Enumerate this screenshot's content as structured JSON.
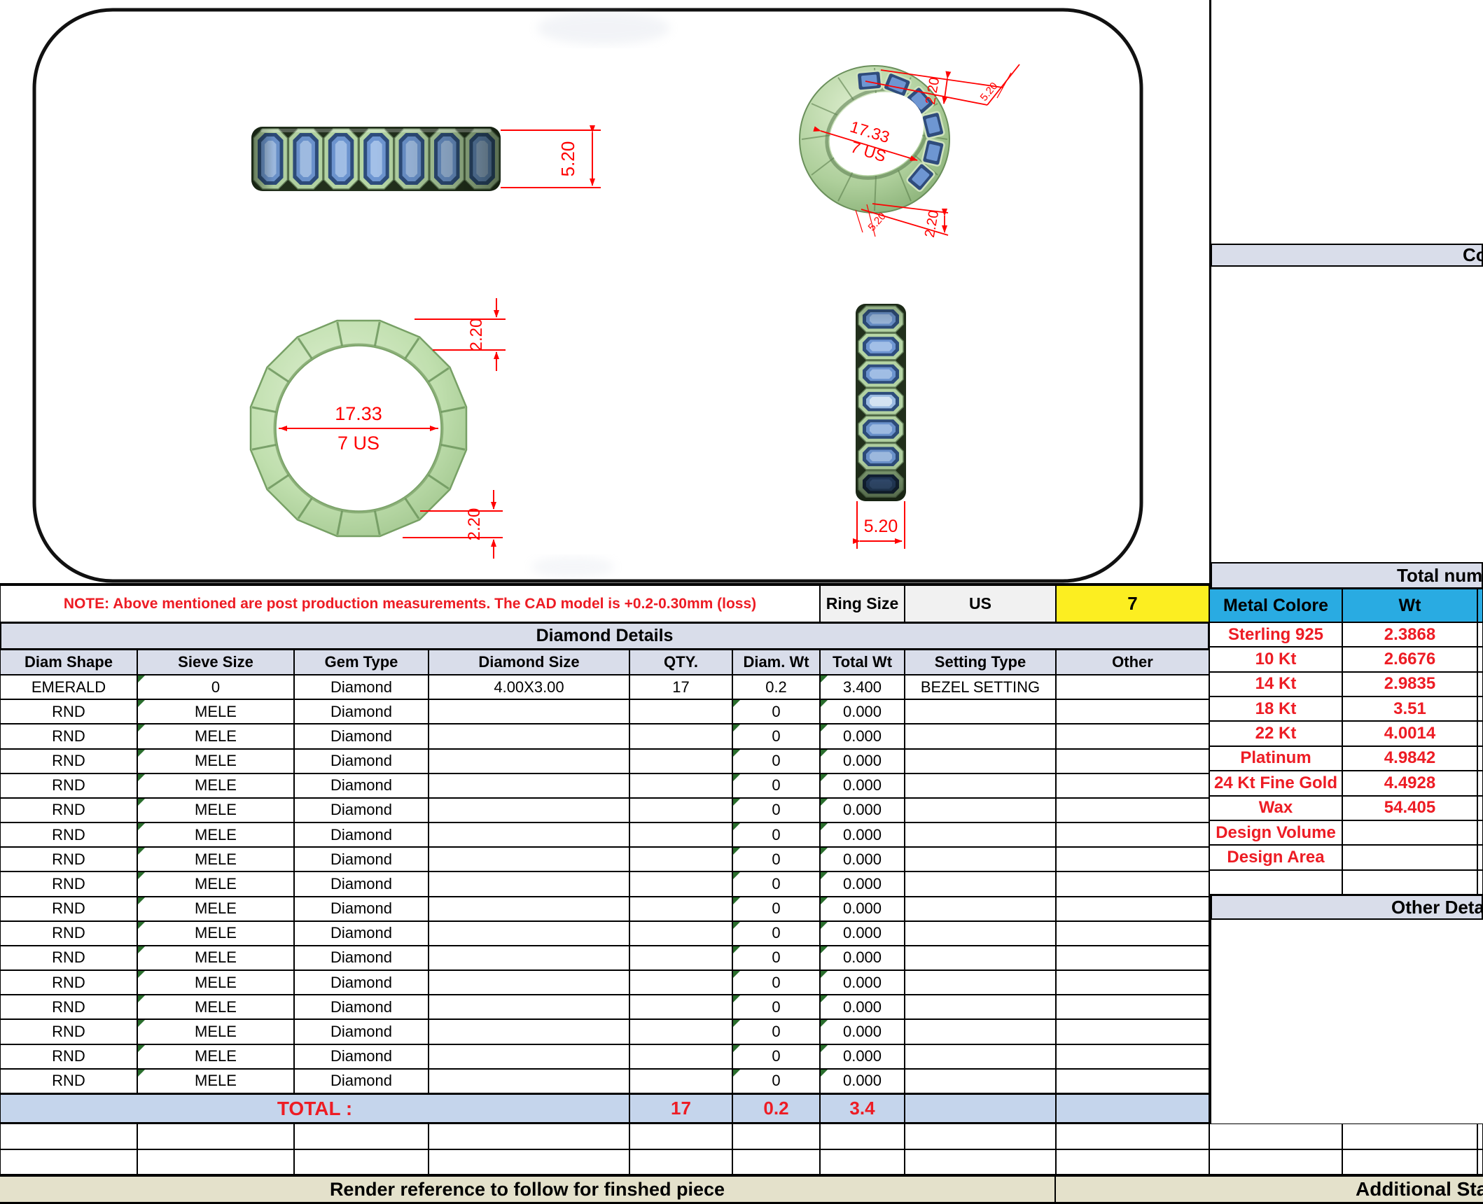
{
  "drawing": {
    "side_view": {
      "height": "5.20"
    },
    "perspective_view": {
      "diameter": "17.33",
      "ring_size": "7 US",
      "thickness_top": "2.20",
      "width_top": "5.20",
      "thickness_bottom": "2.20",
      "width_bottom": "5.20"
    },
    "front_view": {
      "diameter": "17.33",
      "ring_size": "7 US",
      "thickness_top": "2.20",
      "thickness_bottom": "2.20"
    },
    "profile_view": {
      "width": "5.20"
    }
  },
  "note": {
    "text": "NOTE: Above mentioned are post production measurements. The CAD model is +0.2-0.30mm (loss)"
  },
  "ring_size": {
    "label": "Ring Size",
    "standard": "US",
    "value": "7"
  },
  "diamond_table": {
    "title": "Diamond Details",
    "headers": [
      "Diam Shape",
      "Sieve Size",
      "Gem Type",
      "Diamond Size",
      "QTY.",
      "Diam. Wt",
      "Total Wt",
      "Setting Type",
      "Other"
    ],
    "rows": [
      {
        "shape": "EMERALD",
        "sieve": "0",
        "gem": "Diamond",
        "size": "4.00X3.00",
        "qty": "17",
        "diam_wt": "0.2",
        "total_wt": "3.400",
        "setting": "BEZEL SETTING",
        "other": ""
      },
      {
        "shape": "RND",
        "sieve": "MELE",
        "gem": "Diamond",
        "size": "",
        "qty": "",
        "diam_wt": "0",
        "total_wt": "0.000",
        "setting": "",
        "other": ""
      },
      {
        "shape": "RND",
        "sieve": "MELE",
        "gem": "Diamond",
        "size": "",
        "qty": "",
        "diam_wt": "0",
        "total_wt": "0.000",
        "setting": "",
        "other": ""
      },
      {
        "shape": "RND",
        "sieve": "MELE",
        "gem": "Diamond",
        "size": "",
        "qty": "",
        "diam_wt": "0",
        "total_wt": "0.000",
        "setting": "",
        "other": ""
      },
      {
        "shape": "RND",
        "sieve": "MELE",
        "gem": "Diamond",
        "size": "",
        "qty": "",
        "diam_wt": "0",
        "total_wt": "0.000",
        "setting": "",
        "other": ""
      },
      {
        "shape": "RND",
        "sieve": "MELE",
        "gem": "Diamond",
        "size": "",
        "qty": "",
        "diam_wt": "0",
        "total_wt": "0.000",
        "setting": "",
        "other": ""
      },
      {
        "shape": "RND",
        "sieve": "MELE",
        "gem": "Diamond",
        "size": "",
        "qty": "",
        "diam_wt": "0",
        "total_wt": "0.000",
        "setting": "",
        "other": ""
      },
      {
        "shape": "RND",
        "sieve": "MELE",
        "gem": "Diamond",
        "size": "",
        "qty": "",
        "diam_wt": "0",
        "total_wt": "0.000",
        "setting": "",
        "other": ""
      },
      {
        "shape": "RND",
        "sieve": "MELE",
        "gem": "Diamond",
        "size": "",
        "qty": "",
        "diam_wt": "0",
        "total_wt": "0.000",
        "setting": "",
        "other": ""
      },
      {
        "shape": "RND",
        "sieve": "MELE",
        "gem": "Diamond",
        "size": "",
        "qty": "",
        "diam_wt": "0",
        "total_wt": "0.000",
        "setting": "",
        "other": ""
      },
      {
        "shape": "RND",
        "sieve": "MELE",
        "gem": "Diamond",
        "size": "",
        "qty": "",
        "diam_wt": "0",
        "total_wt": "0.000",
        "setting": "",
        "other": ""
      },
      {
        "shape": "RND",
        "sieve": "MELE",
        "gem": "Diamond",
        "size": "",
        "qty": "",
        "diam_wt": "0",
        "total_wt": "0.000",
        "setting": "",
        "other": ""
      },
      {
        "shape": "RND",
        "sieve": "MELE",
        "gem": "Diamond",
        "size": "",
        "qty": "",
        "diam_wt": "0",
        "total_wt": "0.000",
        "setting": "",
        "other": ""
      },
      {
        "shape": "RND",
        "sieve": "MELE",
        "gem": "Diamond",
        "size": "",
        "qty": "",
        "diam_wt": "0",
        "total_wt": "0.000",
        "setting": "",
        "other": ""
      },
      {
        "shape": "RND",
        "sieve": "MELE",
        "gem": "Diamond",
        "size": "",
        "qty": "",
        "diam_wt": "0",
        "total_wt": "0.000",
        "setting": "",
        "other": ""
      },
      {
        "shape": "RND",
        "sieve": "MELE",
        "gem": "Diamond",
        "size": "",
        "qty": "",
        "diam_wt": "0",
        "total_wt": "0.000",
        "setting": "",
        "other": ""
      },
      {
        "shape": "RND",
        "sieve": "MELE",
        "gem": "Diamond",
        "size": "",
        "qty": "",
        "diam_wt": "0",
        "total_wt": "0.000",
        "setting": "",
        "other": ""
      }
    ],
    "total": {
      "label": "TOTAL :",
      "qty": "17",
      "diam_wt": "0.2",
      "total_wt": "3.4"
    }
  },
  "metal_table": {
    "headers": [
      "Metal Colore",
      "Wt"
    ],
    "rows": [
      {
        "metal": "Sterling 925",
        "wt": "2.3868"
      },
      {
        "metal": "10 Kt",
        "wt": "2.6676"
      },
      {
        "metal": "14 Kt",
        "wt": "2.9835"
      },
      {
        "metal": "18 Kt",
        "wt": "3.51"
      },
      {
        "metal": "22 Kt",
        "wt": "4.0014"
      },
      {
        "metal": "Platinum",
        "wt": "4.9842"
      },
      {
        "metal": "24 Kt Fine Gold",
        "wt": "4.4928"
      },
      {
        "metal": "Wax",
        "wt": "54.405"
      },
      {
        "metal": "Design Volume",
        "wt": ""
      },
      {
        "metal": "Design Area",
        "wt": ""
      },
      {
        "metal": "",
        "wt": ""
      }
    ]
  },
  "right_panel": {
    "comments_header": "Co",
    "total_number_header": "Total numb",
    "other_details_header": "Other Detail"
  },
  "footer": {
    "left": "Render reference to follow for finshed piece",
    "right": "Additional Sta"
  },
  "colors": {
    "header_band": "#d9ddea",
    "total_row_blue": "#c5d5ec",
    "highlight_yellow": "#fcee21",
    "header_cyan": "#29abe2",
    "footer_beige": "#e4e1cb",
    "dimension_red": "#ff0000",
    "text_red": "#ed1c24",
    "bezel_green": "#b7d7a6",
    "stone_blue": "#6e96d2"
  }
}
